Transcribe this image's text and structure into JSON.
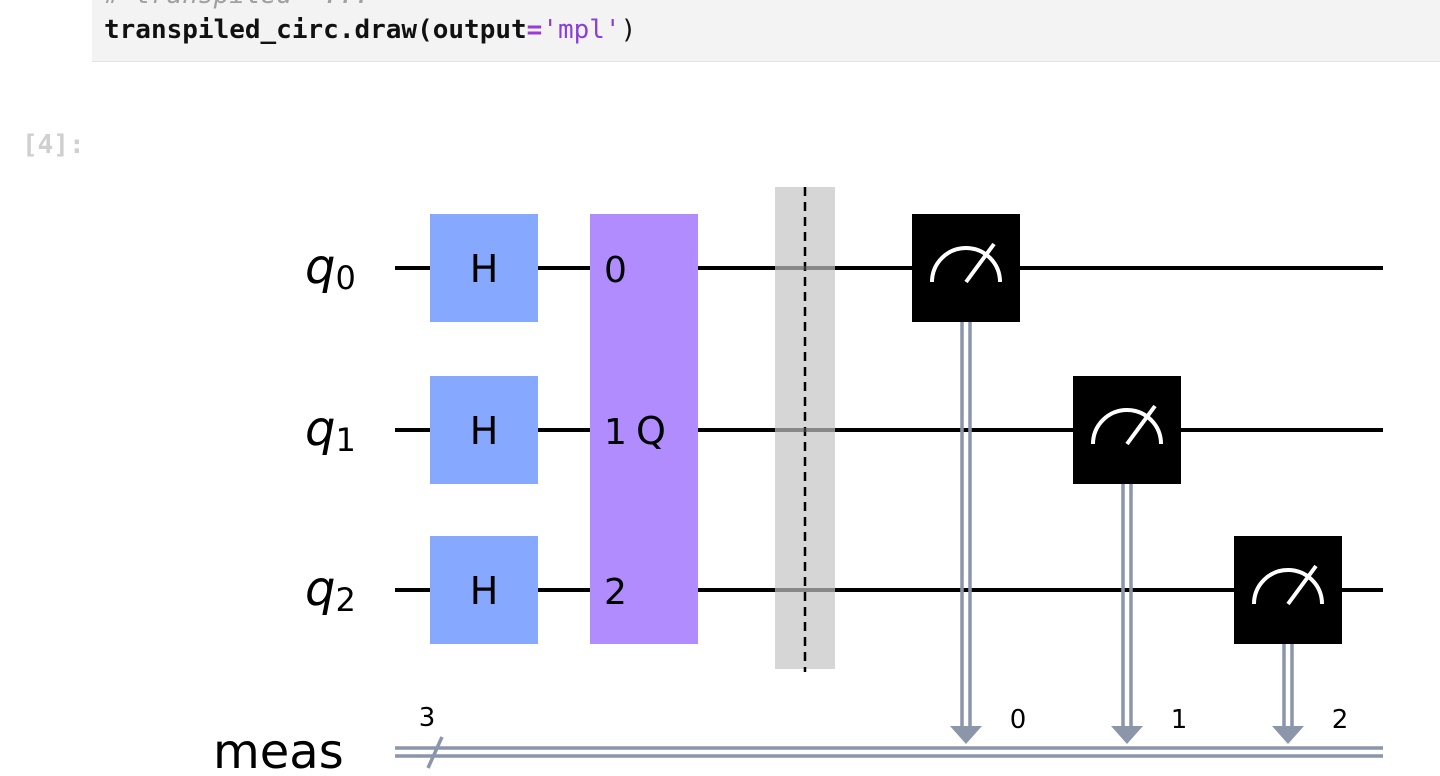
{
  "code_cell": {
    "comment_partial": "# transpiled  ...",
    "code_object": "transpiled_circ",
    "code_method": ".draw(",
    "code_kwarg": "output",
    "code_op": "=",
    "code_string": "'mpl'",
    "code_close": ")"
  },
  "output": {
    "prompt": "[4]:"
  },
  "circuit": {
    "qubits": [
      {
        "name": "q",
        "index": "0"
      },
      {
        "name": "q",
        "index": "1"
      },
      {
        "name": "q",
        "index": "2"
      }
    ],
    "classical_register": {
      "name": "meas",
      "size": "3"
    },
    "h_gates": [
      {
        "label": "H",
        "qubit": 0
      },
      {
        "label": "H",
        "qubit": 1
      },
      {
        "label": "H",
        "qubit": 2
      }
    ],
    "multi_gate": {
      "label": "Q",
      "pins": [
        "0",
        "1",
        "2"
      ]
    },
    "measurements": [
      {
        "qubit": 0,
        "clbit": "0"
      },
      {
        "qubit": 1,
        "clbit": "1"
      },
      {
        "qubit": 2,
        "clbit": "2"
      }
    ],
    "colors": {
      "h_gate": "#86a8ff",
      "multi_gate": "#b08cff",
      "barrier": "#d6d6d6",
      "measure": "#000000",
      "classical_wire": "#8c96aa",
      "wire": "#000000"
    }
  }
}
